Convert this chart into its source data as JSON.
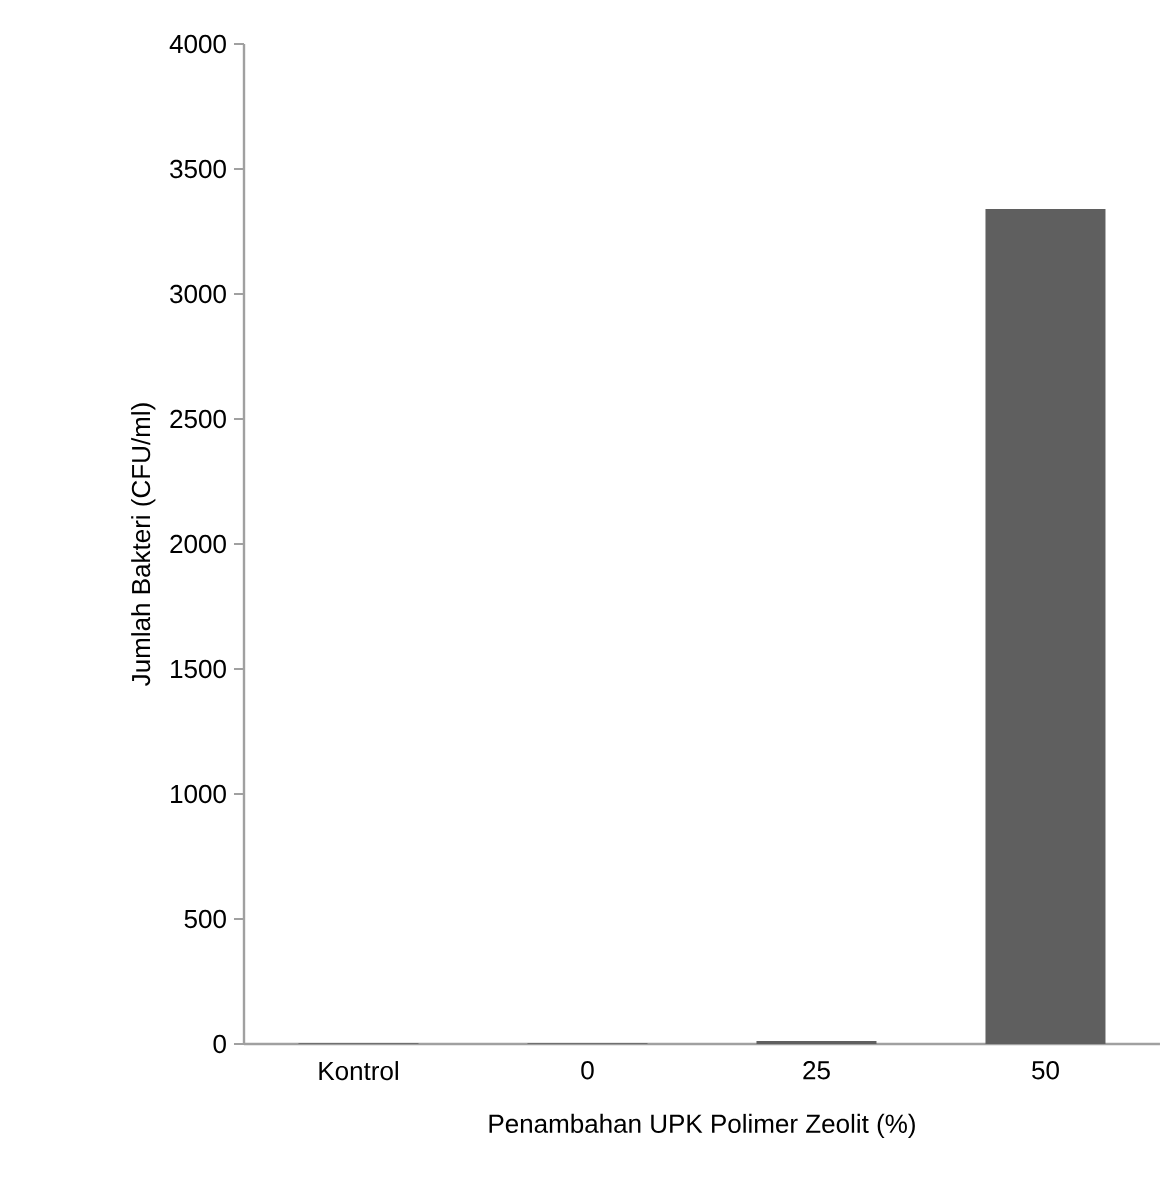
{
  "chart_data": {
    "type": "bar",
    "xlabel": "Penambahan UPK Polimer Zeolit (%)",
    "ylabel": "Jumlah Bakteri (CFU/ml)",
    "categories": [
      "Kontrol",
      "0",
      "25",
      "50"
    ],
    "values": [
      3,
      3,
      12,
      3340
    ],
    "color": "#5f5f5f",
    "ylim": [
      0,
      4000
    ],
    "yticks": [
      0,
      500,
      1000,
      1500,
      2000,
      2500,
      3000,
      3500,
      4000
    ],
    "grid": false
  }
}
